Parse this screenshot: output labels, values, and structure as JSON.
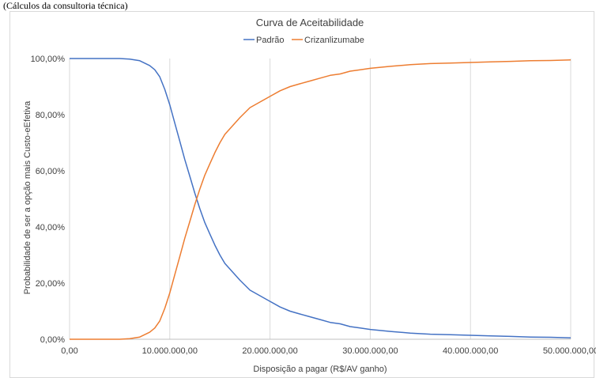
{
  "caption": "(Cálculos da consultoria técnica)",
  "chart_data": {
    "type": "line",
    "title": "Curva de Aceitabilidade",
    "xlabel": "Disposição a pagar (R$/AV ganho)",
    "ylabel": "Probabilidade de ser a opção mais Custo-eEfetiva",
    "xlim": [
      0,
      50000000
    ],
    "ylim": [
      0,
      100
    ],
    "x_ticks": [
      0,
      10000000,
      20000000,
      30000000,
      40000000,
      50000000
    ],
    "x_tick_labels": [
      "0,00",
      "10.000.000,00",
      "20.000.000,00",
      "30.000.000,00",
      "40.000.000,00",
      "50.000.000,00"
    ],
    "y_ticks": [
      0,
      20,
      40,
      60,
      80,
      100
    ],
    "y_tick_labels": [
      "0,00%",
      "20,00%",
      "40,00%",
      "60,00%",
      "80,00%",
      "100,00%"
    ],
    "grid": "vertical",
    "legend": "top",
    "x": [
      0,
      5000000,
      6000000,
      7000000,
      8000000,
      8500000,
      9000000,
      9500000,
      10000000,
      10500000,
      11000000,
      11500000,
      12000000,
      12500000,
      13000000,
      13500000,
      14000000,
      14500000,
      15000000,
      15500000,
      16000000,
      17000000,
      18000000,
      19000000,
      20000000,
      21000000,
      22000000,
      23000000,
      24000000,
      25000000,
      26000000,
      27000000,
      28000000,
      29000000,
      30000000,
      32000000,
      34000000,
      36000000,
      38000000,
      40000000,
      42000000,
      44000000,
      46000000,
      48000000,
      50000000
    ],
    "series": [
      {
        "name": "Padrão",
        "color": "#4472c4",
        "values": [
          100,
          100,
          99.8,
          99.2,
          97.5,
          96,
          93.5,
          89,
          83.5,
          77,
          70.5,
          64,
          58,
          52,
          46.5,
          41.5,
          37.5,
          33.5,
          30,
          27,
          25,
          21,
          17.5,
          15.5,
          13.5,
          11.5,
          10,
          9,
          8,
          7,
          6,
          5.5,
          4.5,
          4,
          3.5,
          2.8,
          2.2,
          1.8,
          1.6,
          1.4,
          1.2,
          1.0,
          0.8,
          0.7,
          0.5
        ]
      },
      {
        "name": "Crizanlizumabe",
        "color": "#ed7d31",
        "values": [
          0,
          0,
          0.2,
          0.8,
          2.5,
          4,
          6.5,
          11,
          16.5,
          23,
          29.5,
          36,
          42,
          48,
          53.5,
          58.5,
          62.5,
          66.5,
          70,
          73,
          75,
          79,
          82.5,
          84.5,
          86.5,
          88.5,
          90,
          91,
          92,
          93,
          94,
          94.5,
          95.5,
          96,
          96.5,
          97.2,
          97.8,
          98.2,
          98.4,
          98.6,
          98.8,
          99.0,
          99.2,
          99.3,
          99.5
        ]
      }
    ]
  }
}
